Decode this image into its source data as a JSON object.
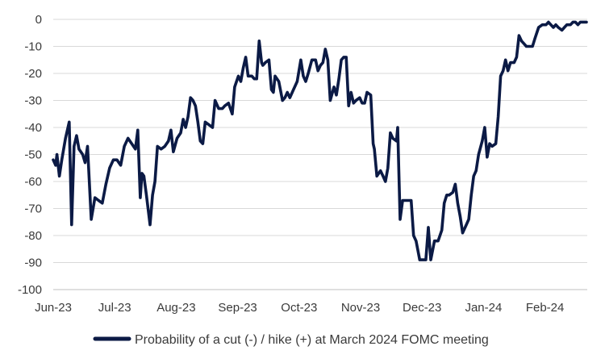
{
  "chart_data": {
    "type": "line",
    "title": "",
    "xlabel": "",
    "ylabel": "",
    "ylim": [
      -100,
      0
    ],
    "yticks": [
      0,
      -10,
      -20,
      -30,
      -40,
      -50,
      -60,
      -70,
      -80,
      -90,
      -100
    ],
    "xticks": [
      "Jun-23",
      "Jul-23",
      "Aug-23",
      "Sep-23",
      "Oct-23",
      "Nov-23",
      "Dec-23",
      "Jan-24",
      "Feb-24"
    ],
    "grid": "horizontal",
    "legend_position": "bottom",
    "series": [
      {
        "name": "Probability of a cut (-) / hike (+) at March 2024 FOMC meeting",
        "color": "#0b1a45",
        "points": [
          [
            0,
            -52
          ],
          [
            0.1,
            -54
          ],
          [
            0.15,
            -50
          ],
          [
            0.25,
            -58
          ],
          [
            0.35,
            -52
          ],
          [
            0.5,
            -44
          ],
          [
            0.65,
            -38
          ],
          [
            0.75,
            -76
          ],
          [
            0.85,
            -47
          ],
          [
            0.95,
            -43
          ],
          [
            1.05,
            -48
          ],
          [
            1.2,
            -50
          ],
          [
            1.3,
            -53
          ],
          [
            1.4,
            -47
          ],
          [
            1.55,
            -74
          ],
          [
            1.7,
            -66
          ],
          [
            1.85,
            -67
          ],
          [
            2.0,
            -68
          ],
          [
            2.15,
            -61
          ],
          [
            2.3,
            -55
          ],
          [
            2.45,
            -52
          ],
          [
            2.6,
            -52
          ],
          [
            2.75,
            -54
          ],
          [
            2.9,
            -47
          ],
          [
            3.05,
            -44
          ],
          [
            3.2,
            -46
          ],
          [
            3.35,
            -48
          ],
          [
            3.45,
            -41
          ],
          [
            3.55,
            -66
          ],
          [
            3.62,
            -57
          ],
          [
            3.7,
            -58
          ],
          [
            3.8,
            -65
          ],
          [
            3.95,
            -76
          ],
          [
            4.05,
            -65
          ],
          [
            4.15,
            -60
          ],
          [
            4.25,
            -47
          ],
          [
            4.4,
            -48
          ],
          [
            4.55,
            -47
          ],
          [
            4.7,
            -45
          ],
          [
            4.8,
            -41
          ],
          [
            4.9,
            -49
          ],
          [
            5.05,
            -44
          ],
          [
            5.2,
            -42
          ],
          [
            5.3,
            -37
          ],
          [
            5.4,
            -40
          ],
          [
            5.5,
            -36
          ],
          [
            5.6,
            -29
          ],
          [
            5.7,
            -30
          ],
          [
            5.8,
            -32
          ],
          [
            5.9,
            -38
          ],
          [
            6.0,
            -45
          ],
          [
            6.1,
            -46
          ],
          [
            6.2,
            -38
          ],
          [
            6.35,
            -39
          ],
          [
            6.5,
            -40
          ],
          [
            6.6,
            -30
          ],
          [
            6.75,
            -33
          ],
          [
            6.9,
            -33
          ],
          [
            7.0,
            -32
          ],
          [
            7.15,
            -31
          ],
          [
            7.3,
            -35
          ],
          [
            7.4,
            -25
          ],
          [
            7.55,
            -21
          ],
          [
            7.65,
            -23
          ],
          [
            7.75,
            -18
          ],
          [
            7.85,
            -14
          ],
          [
            7.95,
            -21
          ],
          [
            8.1,
            -21
          ],
          [
            8.2,
            -22
          ],
          [
            8.3,
            -22
          ],
          [
            8.4,
            -8
          ],
          [
            8.5,
            -16
          ],
          [
            8.55,
            -17
          ],
          [
            8.65,
            -16
          ],
          [
            8.8,
            -15
          ],
          [
            8.9,
            -26
          ],
          [
            8.98,
            -27
          ],
          [
            9.05,
            -21
          ],
          [
            9.2,
            -23
          ],
          [
            9.35,
            -30
          ],
          [
            9.45,
            -29
          ],
          [
            9.55,
            -27
          ],
          [
            9.65,
            -29
          ],
          [
            9.8,
            -26
          ],
          [
            9.95,
            -23
          ],
          [
            10.1,
            -15
          ],
          [
            10.2,
            -21
          ],
          [
            10.3,
            -23
          ],
          [
            10.4,
            -20
          ],
          [
            10.55,
            -15
          ],
          [
            10.7,
            -15
          ],
          [
            10.8,
            -19
          ],
          [
            10.9,
            -17
          ],
          [
            11.0,
            -16
          ],
          [
            11.1,
            -11
          ],
          [
            11.2,
            -15
          ],
          [
            11.3,
            -30
          ],
          [
            11.45,
            -25
          ],
          [
            11.55,
            -28
          ],
          [
            11.65,
            -22
          ],
          [
            11.75,
            -15
          ],
          [
            11.85,
            -14
          ],
          [
            11.95,
            -14
          ],
          [
            12.05,
            -32
          ],
          [
            12.15,
            -27
          ],
          [
            12.25,
            -31
          ],
          [
            12.35,
            -30
          ],
          [
            12.5,
            -29
          ],
          [
            12.6,
            -31
          ],
          [
            12.7,
            -31
          ],
          [
            12.8,
            -27
          ],
          [
            12.95,
            -28
          ],
          [
            13.05,
            -46
          ],
          [
            13.1,
            -48
          ],
          [
            13.2,
            -58
          ],
          [
            13.35,
            -56
          ],
          [
            13.45,
            -58
          ],
          [
            13.55,
            -60
          ],
          [
            13.65,
            -55
          ],
          [
            13.75,
            -42
          ],
          [
            13.85,
            -44
          ],
          [
            14.0,
            -45
          ],
          [
            14.05,
            -40
          ],
          [
            14.15,
            -74
          ],
          [
            14.25,
            -67
          ],
          [
            14.4,
            -67
          ],
          [
            14.6,
            -67
          ],
          [
            14.7,
            -80
          ],
          [
            14.8,
            -82
          ],
          [
            14.95,
            -89
          ],
          [
            15.1,
            -89
          ],
          [
            15.2,
            -89
          ],
          [
            15.3,
            -77
          ],
          [
            15.4,
            -89
          ],
          [
            15.55,
            -82
          ],
          [
            15.7,
            -82
          ],
          [
            15.85,
            -78
          ],
          [
            15.95,
            -68
          ],
          [
            16.05,
            -65
          ],
          [
            16.15,
            -65
          ],
          [
            16.3,
            -64
          ],
          [
            16.4,
            -61
          ],
          [
            16.5,
            -68
          ],
          [
            16.6,
            -73
          ],
          [
            16.7,
            -79
          ],
          [
            16.85,
            -76
          ],
          [
            16.95,
            -74
          ],
          [
            17.05,
            -65
          ],
          [
            17.15,
            -58
          ],
          [
            17.25,
            -56
          ],
          [
            17.35,
            -50
          ],
          [
            17.5,
            -45
          ],
          [
            17.6,
            -40
          ],
          [
            17.7,
            -51
          ],
          [
            17.8,
            -46
          ],
          [
            17.9,
            -47
          ],
          [
            18.05,
            -46
          ],
          [
            18.15,
            -36
          ],
          [
            18.25,
            -21
          ],
          [
            18.35,
            -19
          ],
          [
            18.45,
            -15
          ],
          [
            18.55,
            -19
          ],
          [
            18.65,
            -16
          ],
          [
            18.8,
            -16
          ],
          [
            18.9,
            -14
          ],
          [
            19.0,
            -6
          ],
          [
            19.1,
            -8
          ],
          [
            19.2,
            -9
          ],
          [
            19.3,
            -10
          ],
          [
            19.45,
            -10
          ],
          [
            19.55,
            -10
          ],
          [
            19.65,
            -7
          ],
          [
            19.8,
            -3
          ],
          [
            19.95,
            -2
          ],
          [
            20.1,
            -2
          ],
          [
            20.2,
            -1
          ],
          [
            20.3,
            -2
          ],
          [
            20.4,
            -3
          ],
          [
            20.5,
            -2
          ],
          [
            20.6,
            -3
          ],
          [
            20.75,
            -4
          ],
          [
            20.85,
            -3
          ],
          [
            20.95,
            -2
          ],
          [
            21.1,
            -2
          ],
          [
            21.2,
            -1
          ],
          [
            21.3,
            -1
          ],
          [
            21.4,
            -2
          ],
          [
            21.5,
            -1
          ],
          [
            21.65,
            -1
          ],
          [
            21.75,
            -1
          ]
        ]
      }
    ]
  }
}
